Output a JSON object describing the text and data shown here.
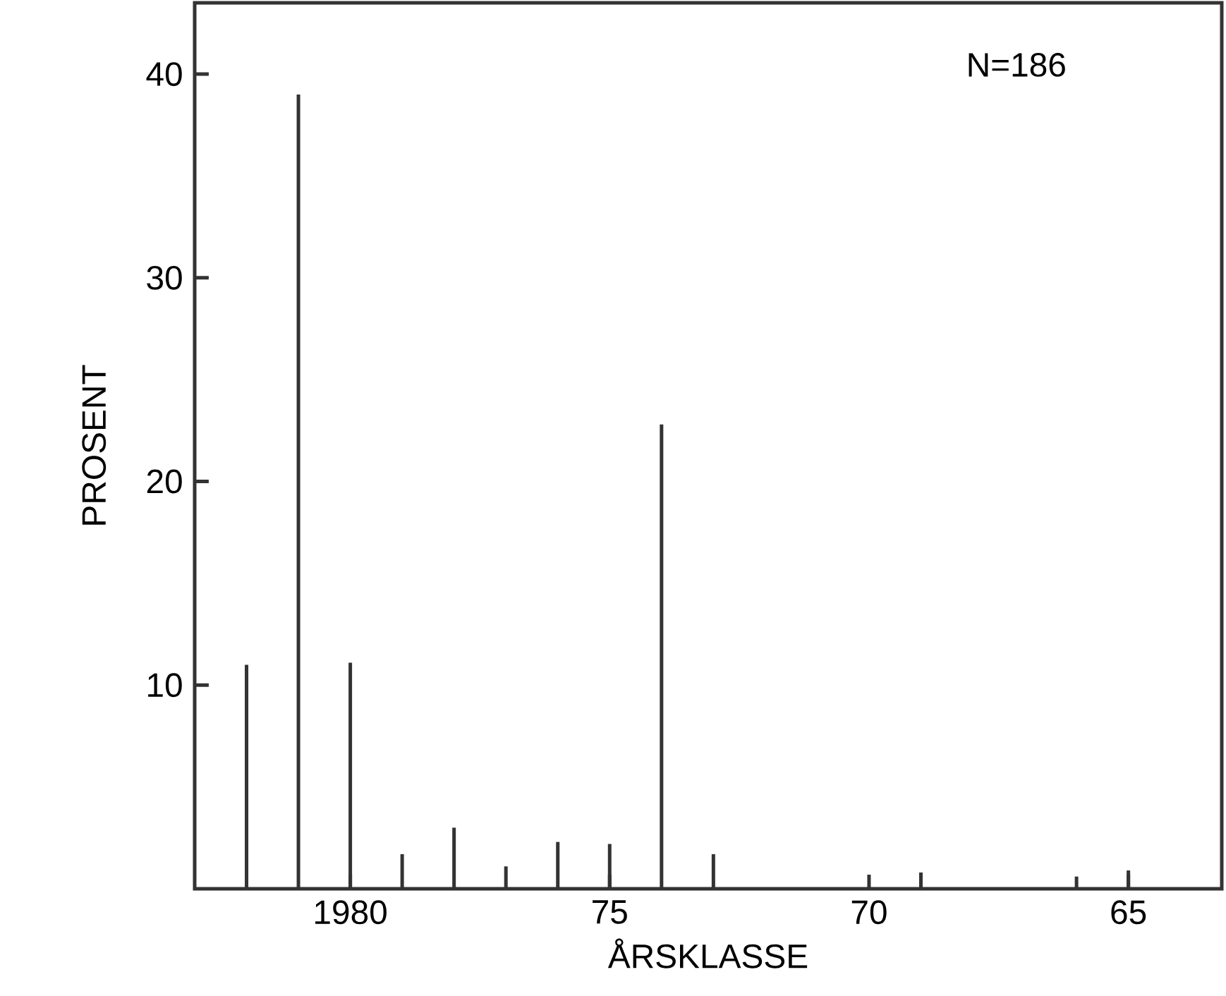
{
  "chart_data": {
    "type": "bar",
    "xlabel": "ÅRSKLASSE",
    "ylabel": "PROSENT",
    "annotations": [
      "N=186"
    ],
    "x": [
      1982,
      1981,
      1980,
      1979,
      1978,
      1977,
      1976,
      1975,
      1974,
      1973,
      1969,
      1966,
      1965
    ],
    "values": [
      11,
      39,
      11.1,
      1.7,
      3,
      1.1,
      2.3,
      2.2,
      22.8,
      1.7,
      0.8,
      0.6,
      0.9
    ],
    "color": "#333333",
    "xlim": [
      1983,
      1963.2
    ],
    "xticks": [
      1980,
      {
        "value": 1975,
        "label": "75"
      },
      {
        "value": 1970,
        "label": "70"
      },
      {
        "value": 1965,
        "label": "65"
      }
    ],
    "ylim": [
      0,
      43.5
    ],
    "yticks": [
      10,
      20,
      30,
      40
    ],
    "grid": false
  }
}
